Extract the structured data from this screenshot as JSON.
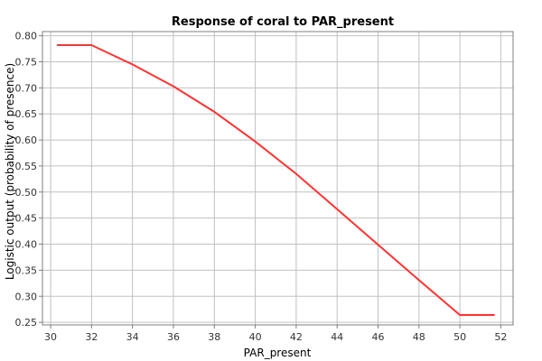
{
  "chart_data": {
    "type": "line",
    "title": "Response of coral to PAR_present",
    "xlabel": "PAR_present",
    "ylabel": "Logistic output (probability of presence)",
    "xlim": [
      29.6,
      52.6
    ],
    "ylim": [
      0.245,
      0.808
    ],
    "x_ticks": [
      30,
      32,
      34,
      36,
      38,
      40,
      42,
      44,
      46,
      48,
      50,
      52
    ],
    "y_ticks": [
      0.25,
      0.3,
      0.35,
      0.4,
      0.45,
      0.5,
      0.55,
      0.6,
      0.65,
      0.7,
      0.75,
      0.8
    ],
    "grid": true,
    "legend": "none",
    "series": [
      {
        "color": "#ff3333",
        "x": [
          30.3,
          32.0,
          34.0,
          36.0,
          38.0,
          40.0,
          42.0,
          44.0,
          46.0,
          48.0,
          50.0,
          51.7
        ],
        "y": [
          0.782,
          0.782,
          0.745,
          0.703,
          0.654,
          0.597,
          0.535,
          0.467,
          0.399,
          0.331,
          0.264,
          0.264
        ]
      }
    ]
  }
}
